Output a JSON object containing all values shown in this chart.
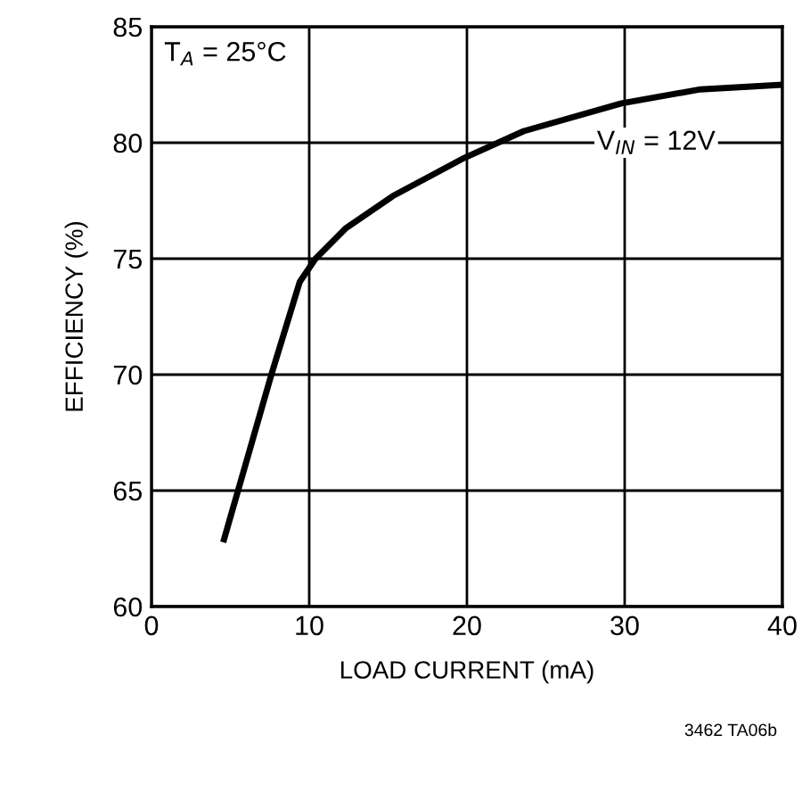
{
  "chart_data": {
    "type": "line",
    "xlabel": "LOAD CURRENT (mA)",
    "ylabel": "EFFICIENCY (%)",
    "series": [
      {
        "color": "#000000",
        "x": [
          4.6,
          7.6,
          9.4,
          10.4,
          12.3,
          15.3,
          19.7,
          23.6,
          29.8,
          34.8,
          40
        ],
        "values": [
          62.9,
          70,
          74,
          75,
          76.3,
          77.7,
          79.3,
          80.5,
          81.7,
          82.3,
          82.5
        ]
      }
    ],
    "xlim": [
      0,
      40
    ],
    "xticks": [
      0,
      10,
      20,
      30,
      40
    ],
    "ylim": [
      60,
      85
    ],
    "yticks": [
      60,
      65,
      70,
      75,
      80,
      85
    ],
    "grid": true,
    "annotations": [
      "T$_{A}$ = 25°C",
      "V$_{IN}$ = 12V",
      "3462 TA06b"
    ]
  }
}
